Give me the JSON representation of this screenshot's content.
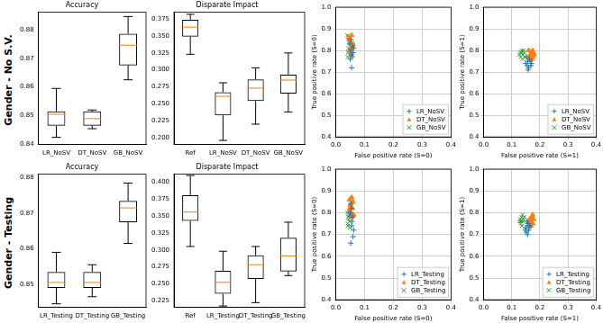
{
  "row_labels": [
    "Gender - No S.V.",
    "Gender - Testing"
  ],
  "chart_data": [
    {
      "type": "box",
      "title": "Accuracy",
      "color": "#000000",
      "grid": false,
      "categories": [
        "LR_NoSV",
        "DT_NoSV",
        "GB_NoSV"
      ],
      "values": [
        {
          "min": 0.8425,
          "q1": 0.8465,
          "median": 0.8505,
          "q3": 0.8515,
          "max": 0.8595
        },
        {
          "min": 0.8455,
          "q1": 0.8465,
          "median": 0.849,
          "q3": 0.8515,
          "max": 0.852
        },
        {
          "min": 0.8625,
          "q1": 0.8675,
          "median": 0.8745,
          "q3": 0.8785,
          "max": 0.8845
        }
      ],
      "ylim": [
        0.84,
        0.886
      ],
      "yticks": [
        0.84,
        0.85,
        0.86,
        0.87,
        0.88
      ]
    },
    {
      "type": "box",
      "title": "Disparate Impact",
      "color": "#000000",
      "grid": false,
      "categories": [
        "Ref",
        "LR_NoSV",
        "DT_NoSV",
        "GB_NoSV"
      ],
      "values": [
        {
          "min": 0.323,
          "q1": 0.349,
          "median": 0.363,
          "q3": 0.374,
          "max": 0.382
        },
        {
          "min": 0.196,
          "q1": 0.233,
          "median": 0.261,
          "q3": 0.267,
          "max": 0.281
        },
        {
          "min": 0.22,
          "q1": 0.254,
          "median": 0.273,
          "q3": 0.286,
          "max": 0.303
        },
        {
          "min": 0.238,
          "q1": 0.265,
          "median": 0.285,
          "q3": 0.293,
          "max": 0.325
        }
      ],
      "ylim": [
        0.19,
        0.385
      ],
      "yticks": [
        {
          "value": 0.2,
          "label": "0.200"
        },
        {
          "value": 0.225,
          "label": "0.225"
        },
        {
          "value": 0.25,
          "label": "0.250"
        },
        {
          "value": 0.275,
          "label": "0.275"
        },
        {
          "value": 0.3,
          "label": "0.300"
        },
        {
          "value": 0.325,
          "label": "0.325"
        },
        {
          "value": 0.35,
          "label": "0.350"
        },
        {
          "value": 0.375,
          "label": "0.375"
        }
      ]
    },
    {
      "type": "scatter",
      "x_label": "False positive rate (S=0)",
      "y_label": "True positive rate (S=0)",
      "grid": true,
      "legend": "lower right",
      "xlim": [
        0,
        0.4
      ],
      "xticks": [
        {
          "value": 0,
          "label": "0.0"
        },
        0.1,
        0.2,
        0.3,
        0.4
      ],
      "ylim": [
        0.4,
        1
      ],
      "yticks": [
        0.4,
        0.5,
        0.6,
        0.7,
        0.8,
        0.9,
        {
          "value": 1,
          "label": "1.0"
        }
      ],
      "series": [
        {
          "name": "LR_NoSV",
          "color": "#1f77b4",
          "marker": "plus",
          "x": [
            0.052,
            0.055,
            0.058,
            0.05,
            0.06,
            0.055,
            0.062,
            0.048,
            0.057,
            0.053
          ],
          "values": [
            0.8,
            0.78,
            0.82,
            0.76,
            0.79,
            0.72,
            0.81,
            0.83,
            0.77,
            0.85
          ]
        },
        {
          "name": "DT_NoSV",
          "color": "#ff7f0e",
          "marker": "triangle",
          "x": [
            0.045,
            0.05,
            0.055,
            0.048,
            0.058,
            0.052,
            0.06,
            0.047,
            0.054,
            0.05
          ],
          "values": [
            0.86,
            0.84,
            0.87,
            0.8,
            0.82,
            0.78,
            0.83,
            0.85,
            0.81,
            0.79
          ]
        },
        {
          "name": "GB_NoSV",
          "color": "#2ca02c",
          "marker": "x",
          "x": [
            0.04,
            0.045,
            0.05,
            0.042,
            0.048,
            0.052,
            0.046,
            0.044,
            0.05,
            0.041
          ],
          "values": [
            0.87,
            0.85,
            0.8,
            0.79,
            0.83,
            0.78,
            0.86,
            0.81,
            0.84,
            0.77
          ]
        }
      ]
    },
    {
      "type": "scatter",
      "x_label": "False positive rate (S=1)",
      "y_label": "True positive rate (S=1)",
      "grid": true,
      "legend": "lower right",
      "xlim": [
        0,
        0.4
      ],
      "xticks": [
        {
          "value": 0,
          "label": "0.0"
        },
        0.1,
        0.2,
        0.3,
        0.4
      ],
      "ylim": [
        0.4,
        1
      ],
      "yticks": [
        0.4,
        0.5,
        0.6,
        0.7,
        0.8,
        0.9,
        {
          "value": 1,
          "label": "1.0"
        }
      ],
      "series": [
        {
          "name": "LR_NoSV",
          "color": "#1f77b4",
          "marker": "plus",
          "x": [
            0.155,
            0.16,
            0.165,
            0.15,
            0.158,
            0.162,
            0.168,
            0.152,
            0.157,
            0.17
          ],
          "values": [
            0.73,
            0.72,
            0.75,
            0.74,
            0.71,
            0.76,
            0.73,
            0.77,
            0.75,
            0.74
          ]
        },
        {
          "name": "DT_NoSV",
          "color": "#ff7f0e",
          "marker": "triangle",
          "x": [
            0.165,
            0.17,
            0.175,
            0.16,
            0.172,
            0.168,
            0.178,
            0.163,
            0.174,
            0.18
          ],
          "values": [
            0.78,
            0.79,
            0.77,
            0.8,
            0.76,
            0.78,
            0.79,
            0.77,
            0.8,
            0.78
          ]
        },
        {
          "name": "GB_NoSV",
          "color": "#2ca02c",
          "marker": "x",
          "x": [
            0.13,
            0.135,
            0.14,
            0.132,
            0.145,
            0.138,
            0.142,
            0.128,
            0.147,
            0.136
          ],
          "values": [
            0.79,
            0.8,
            0.78,
            0.77,
            0.79,
            0.76,
            0.8,
            0.78,
            0.77,
            0.79
          ]
        }
      ]
    },
    {
      "type": "box",
      "title": "Accuracy",
      "color": "#000000",
      "grid": false,
      "categories": [
        "LR_Testing",
        "DT_Testing",
        "GB_Testing"
      ],
      "values": [
        {
          "min": 0.8445,
          "q1": 0.849,
          "median": 0.8505,
          "q3": 0.8535,
          "max": 0.859
        },
        {
          "min": 0.8465,
          "q1": 0.849,
          "median": 0.8505,
          "q3": 0.8535,
          "max": 0.8555
        },
        {
          "min": 0.8615,
          "q1": 0.8675,
          "median": 0.8715,
          "q3": 0.8735,
          "max": 0.8785
        }
      ],
      "ylim": [
        0.8435,
        0.881
      ],
      "yticks": [
        0.85,
        0.86,
        0.87,
        0.88
      ]
    },
    {
      "type": "box",
      "title": "Disparate Impact",
      "color": "#000000",
      "grid": false,
      "categories": [
        "Ref",
        "LR_Testing",
        "DT_Testing",
        "GB_Testing"
      ],
      "values": [
        {
          "min": 0.305,
          "q1": 0.343,
          "median": 0.356,
          "q3": 0.381,
          "max": 0.41
        },
        {
          "min": 0.217,
          "q1": 0.235,
          "median": 0.252,
          "q3": 0.269,
          "max": 0.298
        },
        {
          "min": 0.222,
          "q1": 0.257,
          "median": 0.278,
          "q3": 0.292,
          "max": 0.305
        },
        {
          "min": 0.262,
          "q1": 0.268,
          "median": 0.291,
          "q3": 0.318,
          "max": 0.341
        }
      ],
      "ylim": [
        0.215,
        0.412
      ],
      "yticks": [
        {
          "value": 0.225,
          "label": "0.225"
        },
        {
          "value": 0.25,
          "label": "0.250"
        },
        {
          "value": 0.275,
          "label": "0.275"
        },
        {
          "value": 0.3,
          "label": "0.300"
        },
        {
          "value": 0.325,
          "label": "0.325"
        },
        {
          "value": 0.35,
          "label": "0.350"
        },
        {
          "value": 0.375,
          "label": "0.375"
        },
        {
          "value": 0.4,
          "label": "0.400"
        }
      ]
    },
    {
      "type": "scatter",
      "x_label": "False positive rate (S=0)",
      "y_label": "True positive rate (S=0)",
      "grid": true,
      "legend": "lower right",
      "xlim": [
        0,
        0.4
      ],
      "xticks": [
        {
          "value": 0,
          "label": "0.0"
        },
        0.1,
        0.2,
        0.3,
        0.4
      ],
      "ylim": [
        0.4,
        1
      ],
      "yticks": [
        0.4,
        0.5,
        0.6,
        0.7,
        0.8,
        0.9,
        {
          "value": 1,
          "label": "1.0"
        }
      ],
      "series": [
        {
          "name": "LR_Testing",
          "color": "#1f77b4",
          "marker": "plus",
          "x": [
            0.05,
            0.055,
            0.058,
            0.052,
            0.06,
            0.054,
            0.057,
            0.049,
            0.062,
            0.053
          ],
          "values": [
            0.8,
            0.74,
            0.78,
            0.66,
            0.69,
            0.82,
            0.76,
            0.79,
            0.72,
            0.84
          ]
        },
        {
          "name": "DT_Testing",
          "color": "#ff7f0e",
          "marker": "triangle",
          "x": [
            0.048,
            0.055,
            0.058,
            0.05,
            0.062,
            0.053,
            0.06,
            0.047,
            0.056,
            0.051
          ],
          "values": [
            0.86,
            0.87,
            0.82,
            0.83,
            0.79,
            0.8,
            0.85,
            0.81,
            0.78,
            0.84
          ]
        },
        {
          "name": "GB_Testing",
          "color": "#2ca02c",
          "marker": "x",
          "x": [
            0.04,
            0.045,
            0.048,
            0.042,
            0.05,
            0.044,
            0.046,
            0.041,
            0.049,
            0.043
          ],
          "values": [
            0.8,
            0.78,
            0.76,
            0.74,
            0.79,
            0.77,
            0.81,
            0.75,
            0.73,
            0.78
          ]
        }
      ]
    },
    {
      "type": "scatter",
      "x_label": "False positive rate (S=1)",
      "y_label": "True positive rate (S=1)",
      "grid": true,
      "legend": "lower right",
      "xlim": [
        0,
        0.4
      ],
      "xticks": [
        {
          "value": 0,
          "label": "0.0"
        },
        0.1,
        0.2,
        0.3,
        0.4
      ],
      "ylim": [
        0.4,
        1
      ],
      "yticks": [
        0.4,
        0.5,
        0.6,
        0.7,
        0.8,
        0.9,
        {
          "value": 1,
          "label": "1.0"
        }
      ],
      "series": [
        {
          "name": "LR_Testing",
          "color": "#1f77b4",
          "marker": "plus",
          "x": [
            0.15,
            0.155,
            0.16,
            0.152,
            0.158,
            0.162,
            0.148,
            0.165,
            0.156,
            0.153
          ],
          "values": [
            0.73,
            0.74,
            0.72,
            0.71,
            0.75,
            0.73,
            0.72,
            0.74,
            0.7,
            0.76
          ]
        },
        {
          "name": "DT_Testing",
          "color": "#ff7f0e",
          "marker": "triangle",
          "x": [
            0.165,
            0.17,
            0.175,
            0.168,
            0.172,
            0.16,
            0.178,
            0.166,
            0.174,
            0.163
          ],
          "values": [
            0.76,
            0.77,
            0.75,
            0.74,
            0.78,
            0.76,
            0.77,
            0.75,
            0.79,
            0.77
          ]
        },
        {
          "name": "GB_Testing",
          "color": "#2ca02c",
          "marker": "x",
          "x": [
            0.13,
            0.135,
            0.14,
            0.132,
            0.138,
            0.128,
            0.142,
            0.136,
            0.145,
            0.133
          ],
          "values": [
            0.77,
            0.78,
            0.76,
            0.75,
            0.79,
            0.76,
            0.77,
            0.74,
            0.78,
            0.76
          ]
        }
      ]
    }
  ]
}
